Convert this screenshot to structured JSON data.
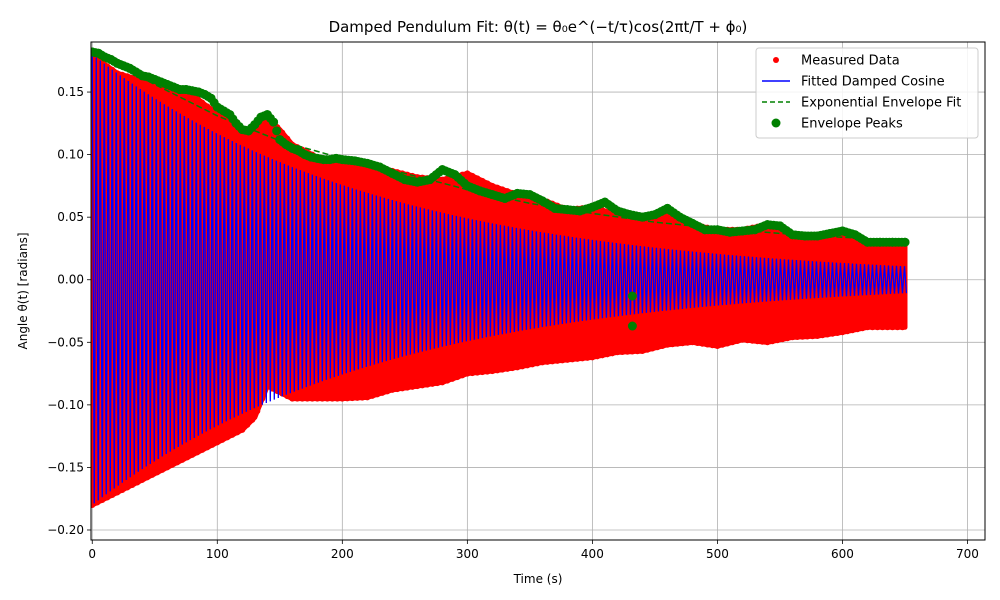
{
  "chart_data": {
    "type": "scatter",
    "title": "Damped Pendulum Fit: θ(t) = θ₀e^(−t/τ)cos(2πt/T + ϕ₀)",
    "xlabel": "Time (s)",
    "ylabel": "Angle θ(t) [radians]",
    "xlim": [
      -1,
      714
    ],
    "ylim": [
      -0.208,
      0.19
    ],
    "xticks": [
      0,
      100,
      200,
      300,
      400,
      500,
      600,
      700
    ],
    "xtick_labels": [
      "0",
      "100",
      "200",
      "300",
      "400",
      "500",
      "600",
      "700"
    ],
    "yticks": [
      -0.2,
      -0.15,
      -0.1,
      -0.05,
      0.0,
      0.05,
      0.1,
      0.15
    ],
    "ytick_labels": [
      "−0.20",
      "−0.15",
      "−0.10",
      "−0.05",
      "0.00",
      "0.05",
      "0.10",
      "0.15"
    ],
    "grid": true,
    "legend_position": "top-right",
    "colors": {
      "measured": "#ff0000",
      "fitted": "#0000ff",
      "envelope_fit": "#008000",
      "peaks": "#008000"
    },
    "series": [
      {
        "name": "Measured Data",
        "kind": "scatter-band",
        "x": [
          0,
          10,
          20,
          30,
          40,
          50,
          60,
          70,
          80,
          90,
          100,
          110,
          120,
          130,
          140,
          150,
          160,
          170,
          180,
          190,
          200,
          220,
          240,
          260,
          280,
          300,
          320,
          340,
          360,
          380,
          400,
          420,
          440,
          460,
          480,
          500,
          520,
          540,
          560,
          580,
          600,
          620,
          650
        ],
        "upper": [
          0.18,
          0.172,
          0.165,
          0.162,
          0.158,
          0.155,
          0.153,
          0.15,
          0.148,
          0.14,
          0.133,
          0.128,
          0.12,
          0.118,
          0.13,
          0.12,
          0.108,
          0.103,
          0.098,
          0.096,
          0.095,
          0.093,
          0.087,
          0.082,
          0.08,
          0.085,
          0.075,
          0.068,
          0.064,
          0.056,
          0.058,
          0.052,
          0.05,
          0.056,
          0.044,
          0.04,
          0.04,
          0.044,
          0.035,
          0.034,
          0.038,
          0.03,
          0.03
        ],
        "lower": [
          -0.18,
          -0.175,
          -0.17,
          -0.165,
          -0.16,
          -0.155,
          -0.15,
          -0.145,
          -0.14,
          -0.135,
          -0.13,
          -0.125,
          -0.12,
          -0.11,
          -0.085,
          -0.09,
          -0.095,
          -0.095,
          -0.095,
          -0.095,
          -0.095,
          -0.094,
          -0.088,
          -0.085,
          -0.082,
          -0.075,
          -0.073,
          -0.07,
          -0.066,
          -0.064,
          -0.062,
          -0.058,
          -0.057,
          -0.052,
          -0.05,
          -0.053,
          -0.048,
          -0.05,
          -0.046,
          -0.045,
          -0.042,
          -0.038,
          -0.038
        ]
      },
      {
        "name": "Fitted Damped Cosine",
        "kind": "damped-cosine",
        "amplitude": 0.18,
        "tau_s": 231,
        "period_s": 3.2,
        "phase_rad": 0.0,
        "t_end_s": 652
      },
      {
        "name": "Exponential Envelope Fit",
        "kind": "line",
        "x": [
          0,
          50,
          100,
          150,
          200,
          250,
          300,
          350,
          400,
          450,
          500,
          550,
          600,
          652
        ],
        "y": [
          0.182,
          0.156,
          0.131,
          0.111,
          0.097,
          0.085,
          0.072,
          0.061,
          0.053,
          0.046,
          0.041,
          0.037,
          0.034,
          0.031
        ]
      },
      {
        "name": "Envelope Peaks",
        "kind": "scatter",
        "x": [
          0,
          5,
          10,
          15,
          20,
          25,
          30,
          35,
          40,
          45,
          50,
          55,
          60,
          65,
          70,
          75,
          80,
          85,
          90,
          95,
          100,
          105,
          110,
          115,
          120,
          125,
          130,
          135,
          140,
          145,
          150,
          155,
          160,
          165,
          170,
          175,
          180,
          185,
          190,
          195,
          200,
          210,
          220,
          230,
          240,
          250,
          260,
          270,
          280,
          290,
          300,
          310,
          320,
          330,
          340,
          350,
          360,
          370,
          380,
          390,
          400,
          410,
          420,
          430,
          440,
          450,
          460,
          470,
          480,
          490,
          500,
          510,
          520,
          530,
          540,
          550,
          560,
          570,
          580,
          590,
          600,
          610,
          620,
          630,
          640,
          650,
          432,
          432
        ],
        "y": [
          0.182,
          0.181,
          0.178,
          0.176,
          0.173,
          0.171,
          0.169,
          0.166,
          0.163,
          0.162,
          0.16,
          0.158,
          0.156,
          0.154,
          0.152,
          0.152,
          0.151,
          0.15,
          0.148,
          0.145,
          0.138,
          0.135,
          0.132,
          0.125,
          0.12,
          0.119,
          0.124,
          0.13,
          0.132,
          0.126,
          0.112,
          0.108,
          0.105,
          0.103,
          0.1,
          0.098,
          0.097,
          0.096,
          0.096,
          0.097,
          0.096,
          0.095,
          0.093,
          0.09,
          0.085,
          0.08,
          0.078,
          0.08,
          0.088,
          0.084,
          0.075,
          0.071,
          0.068,
          0.065,
          0.069,
          0.068,
          0.063,
          0.057,
          0.056,
          0.055,
          0.058,
          0.062,
          0.055,
          0.052,
          0.05,
          0.052,
          0.057,
          0.05,
          0.045,
          0.04,
          0.04,
          0.038,
          0.039,
          0.04,
          0.044,
          0.043,
          0.036,
          0.035,
          0.035,
          0.037,
          0.039,
          0.036,
          0.03,
          0.03,
          0.03,
          0.03,
          -0.013,
          -0.037
        ]
      }
    ]
  }
}
